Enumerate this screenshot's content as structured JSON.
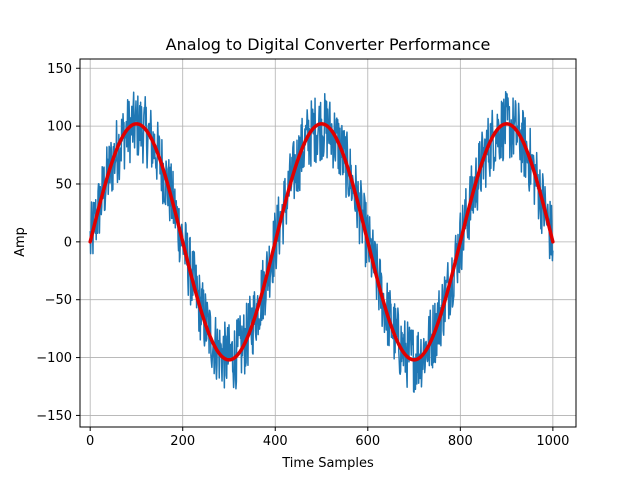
{
  "chart_data": {
    "type": "line",
    "title": "Analog to Digital Converter Performance",
    "xlabel": "Time Samples",
    "ylabel": "Amp",
    "xlim": [
      -22,
      1050
    ],
    "ylim": [
      -160,
      158
    ],
    "xticks": [
      0,
      200,
      400,
      600,
      800,
      1000
    ],
    "yticks": [
      -150,
      -100,
      -50,
      0,
      50,
      100,
      150
    ],
    "xtick_labels": [
      "0",
      "200",
      "400",
      "600",
      "800",
      "1000"
    ],
    "ytick_labels": [
      "−150",
      "−100",
      "−50",
      "0",
      "50",
      "100",
      "150"
    ],
    "grid": true,
    "legend": "none",
    "series": [
      {
        "color": "#1f77b4",
        "style": "thin noisy line",
        "description_values": {
          "x_start": 0,
          "x_end": 1000,
          "points": 1001,
          "amplitude": 100,
          "period": 400,
          "noise_peak_to_peak_approx": 60
        }
      },
      {
        "color": "#e00000",
        "style": "thick smooth line",
        "description_values": {
          "x_start": 0,
          "x_end": 1000,
          "amplitude": 102,
          "period": 400
        }
      }
    ]
  }
}
